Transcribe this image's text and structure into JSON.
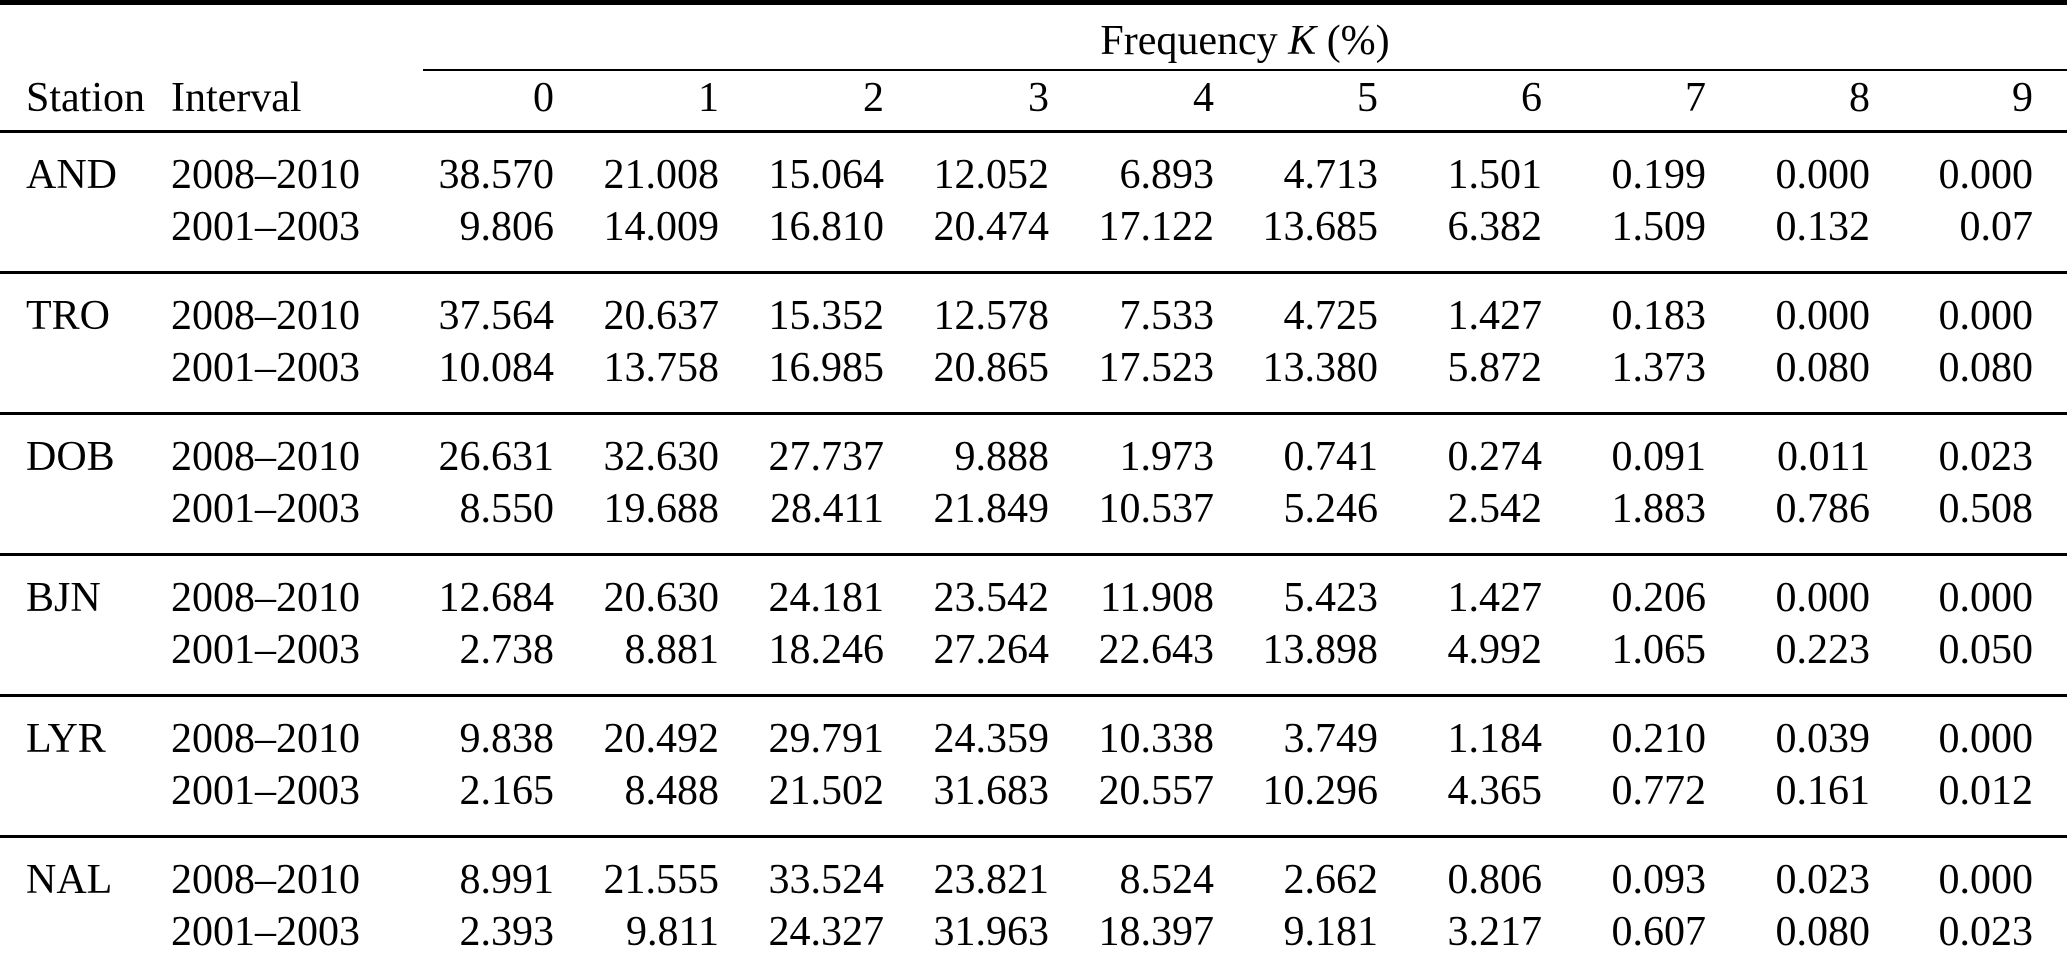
{
  "colors": {
    "text": "#000000",
    "background": "#ffffff",
    "rule": "#000000"
  },
  "table": {
    "title_prefix": "Frequency",
    "title_math": "K",
    "title_suffix": "(%)",
    "col_station": "Station",
    "col_interval": "Interval",
    "k_columns": [
      "0",
      "1",
      "2",
      "3",
      "4",
      "5",
      "6",
      "7",
      "8",
      "9"
    ],
    "groups": [
      {
        "station": "AND",
        "rows": [
          {
            "interval": "2008–2010",
            "values": [
              "38.570",
              "21.008",
              "15.064",
              "12.052",
              "6.893",
              "4.713",
              "1.501",
              "0.199",
              "0.000",
              "0.000"
            ]
          },
          {
            "interval": "2001–2003",
            "values": [
              "9.806",
              "14.009",
              "16.810",
              "20.474",
              "17.122",
              "13.685",
              "6.382",
              "1.509",
              "0.132",
              "0.07"
            ]
          }
        ]
      },
      {
        "station": "TRO",
        "rows": [
          {
            "interval": "2008–2010",
            "values": [
              "37.564",
              "20.637",
              "15.352",
              "12.578",
              "7.533",
              "4.725",
              "1.427",
              "0.183",
              "0.000",
              "0.000"
            ]
          },
          {
            "interval": "2001–2003",
            "values": [
              "10.084",
              "13.758",
              "16.985",
              "20.865",
              "17.523",
              "13.380",
              "5.872",
              "1.373",
              "0.080",
              "0.080"
            ]
          }
        ]
      },
      {
        "station": "DOB",
        "rows": [
          {
            "interval": "2008–2010",
            "values": [
              "26.631",
              "32.630",
              "27.737",
              "9.888",
              "1.973",
              "0.741",
              "0.274",
              "0.091",
              "0.011",
              "0.023"
            ]
          },
          {
            "interval": "2001–2003",
            "values": [
              "8.550",
              "19.688",
              "28.411",
              "21.849",
              "10.537",
              "5.246",
              "2.542",
              "1.883",
              "0.786",
              "0.508"
            ]
          }
        ]
      },
      {
        "station": "BJN",
        "rows": [
          {
            "interval": "2008–2010",
            "values": [
              "12.684",
              "20.630",
              "24.181",
              "23.542",
              "11.908",
              "5.423",
              "1.427",
              "0.206",
              "0.000",
              "0.000"
            ]
          },
          {
            "interval": "2001–2003",
            "values": [
              "2.738",
              "8.881",
              "18.246",
              "27.264",
              "22.643",
              "13.898",
              "4.992",
              "1.065",
              "0.223",
              "0.050"
            ]
          }
        ]
      },
      {
        "station": "LYR",
        "rows": [
          {
            "interval": "2008–2010",
            "values": [
              "9.838",
              "20.492",
              "29.791",
              "24.359",
              "10.338",
              "3.749",
              "1.184",
              "0.210",
              "0.039",
              "0.000"
            ]
          },
          {
            "interval": "2001–2003",
            "values": [
              "2.165",
              "8.488",
              "21.502",
              "31.683",
              "20.557",
              "10.296",
              "4.365",
              "0.772",
              "0.161",
              "0.012"
            ]
          }
        ]
      },
      {
        "station": "NAL",
        "rows": [
          {
            "interval": "2008–2010",
            "values": [
              "8.991",
              "21.555",
              "33.524",
              "23.821",
              "8.524",
              "2.662",
              "0.806",
              "0.093",
              "0.023",
              "0.000"
            ]
          },
          {
            "interval": "2001–2003",
            "values": [
              "2.393",
              "9.811",
              "24.327",
              "31.963",
              "18.397",
              "9.181",
              "3.217",
              "0.607",
              "0.080",
              "0.023"
            ]
          }
        ]
      }
    ]
  }
}
